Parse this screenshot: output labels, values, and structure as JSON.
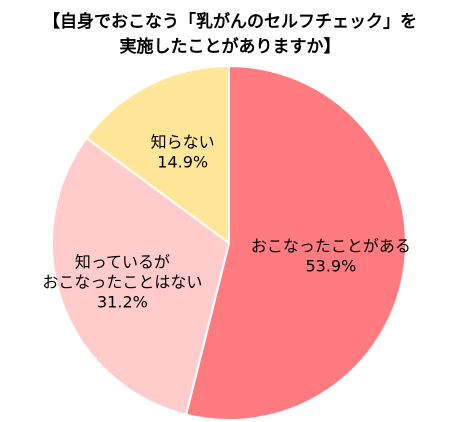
{
  "chart_data": {
    "type": "pie",
    "title_lines": [
      "【自身でおこなう「乳がんのセルフチェック」を",
      "実施したことがありますか】"
    ],
    "unit": "%",
    "start": "12 o'clock",
    "direction": "clockwise",
    "slices": [
      {
        "label_lines": [
          "おこなったことがある"
        ],
        "value": 53.9,
        "value_text": "53.9%",
        "color": "#FF7B7F"
      },
      {
        "label_lines": [
          "知っているが",
          "おこなったことはない"
        ],
        "value": 31.2,
        "value_text": "31.2%",
        "color": "#FFCBCB"
      },
      {
        "label_lines": [
          "知らない"
        ],
        "value": 14.9,
        "value_text": "14.9%",
        "color": "#FFE699"
      }
    ]
  }
}
